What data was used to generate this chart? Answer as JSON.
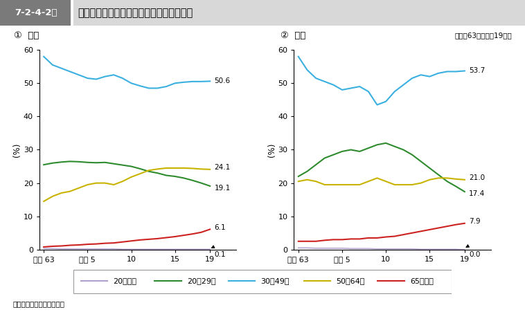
{
  "fig_label": "7-2-4-2図",
  "title": "新受刑者の男女別・年齢層別構成比の推移",
  "subtitle": "（昭和63年～平成19年）",
  "note": "注　矯正統計年報による。",
  "label1": "①  男子",
  "label2": "②  女子",
  "ylabel": "(%)",
  "xtick_labels": [
    "昭和 63",
    "平成 5",
    "10",
    "15",
    "19"
  ],
  "xtick_positions": [
    0,
    5,
    10,
    15,
    19
  ],
  "yticks": [
    0,
    10,
    20,
    30,
    40,
    50,
    60
  ],
  "ylim": [
    0,
    60
  ],
  "colors": {
    "under20": "#b0a0cc",
    "age20_29": "#2e8b2e",
    "age30_49": "#3ab0e0",
    "age50_64": "#c8b400",
    "age65plus": "#cc2222"
  },
  "legend_labels": [
    "20歳未満",
    "20～29歳",
    "30～49歳",
    "50～64歳",
    "65歳以上"
  ],
  "male": {
    "under20": [
      0.3,
      0.3,
      0.2,
      0.2,
      0.2,
      0.2,
      0.2,
      0.2,
      0.2,
      0.1,
      0.1,
      0.1,
      0.1,
      0.1,
      0.1,
      0.1,
      0.1,
      0.1,
      0.1,
      0.1
    ],
    "age20_29": [
      25.5,
      26.0,
      26.3,
      26.5,
      26.4,
      26.2,
      26.1,
      26.2,
      25.8,
      25.4,
      25.0,
      24.3,
      23.5,
      23.0,
      22.3,
      22.0,
      21.5,
      20.8,
      20.0,
      19.1
    ],
    "age30_49": [
      58.0,
      55.5,
      54.5,
      53.5,
      52.5,
      51.5,
      51.2,
      52.0,
      52.5,
      51.5,
      50.0,
      49.2,
      48.5,
      48.5,
      49.0,
      50.0,
      50.3,
      50.5,
      50.5,
      50.6
    ],
    "age50_64": [
      14.5,
      16.0,
      17.0,
      17.5,
      18.5,
      19.5,
      20.0,
      20.0,
      19.5,
      20.5,
      21.8,
      22.8,
      23.8,
      24.2,
      24.5,
      24.5,
      24.5,
      24.4,
      24.2,
      24.1
    ],
    "age65plus": [
      0.8,
      1.0,
      1.1,
      1.3,
      1.4,
      1.6,
      1.7,
      1.9,
      2.0,
      2.3,
      2.6,
      2.9,
      3.1,
      3.3,
      3.6,
      3.9,
      4.3,
      4.7,
      5.2,
      6.1
    ]
  },
  "female": {
    "under20": [
      0.5,
      0.5,
      0.4,
      0.4,
      0.4,
      0.4,
      0.3,
      0.3,
      0.3,
      0.2,
      0.2,
      0.2,
      0.2,
      0.2,
      0.1,
      0.1,
      0.1,
      0.1,
      0.1,
      0.0
    ],
    "age20_29": [
      22.0,
      23.5,
      25.5,
      27.5,
      28.5,
      29.5,
      30.0,
      29.5,
      30.5,
      31.5,
      32.0,
      31.0,
      30.0,
      28.5,
      26.5,
      24.5,
      22.5,
      20.5,
      19.0,
      17.4
    ],
    "age30_49": [
      58.0,
      54.0,
      51.5,
      50.5,
      49.5,
      48.0,
      48.5,
      49.0,
      47.5,
      43.5,
      44.5,
      47.5,
      49.5,
      51.5,
      52.5,
      52.0,
      53.0,
      53.5,
      53.5,
      53.7
    ],
    "age50_64": [
      20.5,
      21.0,
      20.5,
      19.5,
      19.5,
      19.5,
      19.5,
      19.5,
      20.5,
      21.5,
      20.5,
      19.5,
      19.5,
      19.5,
      20.0,
      21.0,
      21.5,
      21.5,
      21.2,
      21.0
    ],
    "age65plus": [
      2.5,
      2.5,
      2.5,
      2.8,
      3.0,
      3.0,
      3.2,
      3.2,
      3.5,
      3.5,
      3.8,
      4.0,
      4.5,
      5.0,
      5.5,
      6.0,
      6.5,
      7.0,
      7.5,
      7.9
    ]
  },
  "male_end_labels": {
    "age30_49": "50.6",
    "age20_29": "19.1",
    "age50_64": "24.1",
    "age65plus": "6.1",
    "under20": "0.1"
  },
  "female_end_labels": {
    "age30_49": "53.7",
    "age20_29": "17.4",
    "age50_64": "21.0",
    "age65plus": "7.9",
    "under20": "0.0"
  }
}
